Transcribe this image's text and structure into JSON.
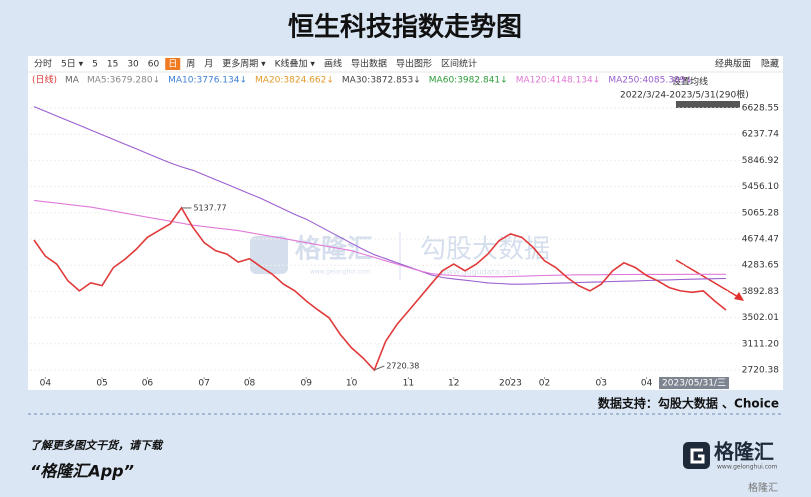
{
  "page": {
    "title": "恒生科技指数走势图",
    "toolbar": [
      "分时",
      "5日 ▾",
      "5",
      "15",
      "30",
      "60",
      "日",
      "周",
      "月",
      "更多周期 ▾",
      "K线叠加 ▾",
      "画线",
      "导出数据",
      "导出图形",
      "区间统计"
    ],
    "toolbar_selected": "日",
    "toolbar_right": [
      "经典版面",
      "隐藏"
    ],
    "ma_legend": [
      {
        "text": "MA",
        "color": "#666666"
      },
      {
        "text": "MA5:3679.280↓",
        "color": "#888888"
      },
      {
        "text": "MA10:3776.134↓",
        "color": "#3f7fd6"
      },
      {
        "text": "MA20:3824.662↓",
        "color": "#e39a2c"
      },
      {
        "text": "MA30:3872.853↓",
        "color": "#444444"
      },
      {
        "text": "MA60:3982.841↓",
        "color": "#2e9d3a"
      }
    ],
    "ma_setting": "设置均线",
    "range": "2022/3/24-2023/5/31(290根)",
    "date_box": "2023/05/31/三",
    "watermark": "格隆汇",
    "watermark_url": "www.gelonghui.com",
    "watermark2": "勾股大数据",
    "watermark2_url": "www.gugudata.com",
    "source": "数据支持：勾股大数据 、Choice",
    "footer_note": "了解更多图文干货，请下载",
    "footer_app": "“格隆汇App”",
    "logo": "格隆汇",
    "logo_url": "www.gelonghui.com",
    "corner_mark": "格隆汇"
  },
  "chart_data": {
    "type": "line",
    "categories": [
      null,
      "04",
      null,
      null,
      null,
      null,
      "05",
      null,
      null,
      null,
      "06",
      null,
      null,
      null,
      null,
      "07",
      null,
      null,
      null,
      "08",
      null,
      null,
      null,
      null,
      "09",
      null,
      null,
      null,
      "10",
      null,
      null,
      null,
      null,
      "11",
      null,
      null,
      null,
      "12",
      null,
      null,
      null,
      null,
      "2023",
      null,
      null,
      "02",
      null,
      null,
      null,
      null,
      "03",
      null,
      null,
      null,
      "04",
      null,
      null,
      null,
      null,
      null,
      null,
      null
    ],
    "series": [
      {
        "name": "(日线)",
        "color": "#e03a3a",
        "values": [
          4660,
          4420,
          4300,
          4050,
          3900,
          4020,
          3980,
          4250,
          4370,
          4520,
          4700,
          4800,
          4900,
          5137.77,
          4850,
          4620,
          4500,
          4450,
          4330,
          4380,
          4260,
          4150,
          4000,
          3900,
          3750,
          3620,
          3500,
          3250,
          3050,
          2900,
          2720.38,
          3150,
          3400,
          3600,
          3800,
          4000,
          4200,
          4300,
          4200,
          4300,
          4450,
          4650,
          4750,
          4700,
          4550,
          4350,
          4250,
          4100,
          3980,
          3900,
          4000,
          4200,
          4320,
          4250,
          4130,
          4050,
          3950,
          3900,
          3880,
          3900,
          3750,
          3615
        ],
        "value_labels": [
          null,
          null,
          null,
          null,
          null,
          null,
          null,
          null,
          null,
          null,
          null,
          null,
          null,
          "5137.77",
          null,
          null,
          null,
          null,
          null,
          null,
          null,
          null,
          null,
          null,
          null,
          null,
          null,
          null,
          null,
          null,
          "2720.38",
          null,
          null,
          null,
          null,
          null,
          null,
          null,
          null,
          null,
          null,
          null,
          null,
          null,
          null,
          null,
          null,
          null,
          null,
          null,
          null,
          null,
          null,
          null,
          null,
          null,
          null,
          null,
          null,
          null,
          null,
          null
        ]
      },
      {
        "name": "MA120:4148.134↓",
        "color": "#e07ad8",
        "values": [
          5250,
          5230,
          5210,
          5190,
          5170,
          5150,
          5120,
          5090,
          5060,
          5030,
          5000,
          4970,
          4940,
          4910,
          4880,
          4860,
          4840,
          4820,
          4800,
          4770,
          4740,
          4710,
          4680,
          4650,
          4620,
          4590,
          4560,
          4530,
          4500,
          4450,
          4400,
          4350,
          4300,
          4250,
          4200,
          4160,
          4140,
          4130,
          4120,
          4115,
          4110,
          4110,
          4115,
          4120,
          4125,
          4130,
          4135,
          4138,
          4140,
          4140,
          4142,
          4144,
          4145,
          4146,
          4146,
          4147,
          4147,
          4148,
          4148,
          4148,
          4148,
          4148.134
        ]
      },
      {
        "name": "MA250:4085.389↓",
        "color": "#9b5fd0",
        "values": [
          6650,
          6580,
          6510,
          6440,
          6370,
          6300,
          6230,
          6160,
          6090,
          6020,
          5950,
          5880,
          5810,
          5750,
          5700,
          5630,
          5560,
          5490,
          5420,
          5350,
          5280,
          5200,
          5120,
          5040,
          4970,
          4880,
          4790,
          4700,
          4610,
          4520,
          4440,
          4380,
          4320,
          4260,
          4200,
          4140,
          4100,
          4080,
          4060,
          4040,
          4020,
          4010,
          4000,
          4000,
          4005,
          4010,
          4015,
          4020,
          4025,
          4030,
          4035,
          4040,
          4045,
          4050,
          4055,
          4060,
          4065,
          4070,
          4075,
          4080,
          4083,
          4085.389
        ]
      }
    ],
    "ylim": [
      2616,
      6748
    ],
    "yticks": [
      2720.38,
      {
        "value": 3111.2,
        "label": "3111.20"
      },
      3502.01,
      3892.83,
      4283.65,
      4674.47,
      5065.28,
      {
        "value": 5456.1,
        "label": "5456.10"
      },
      5846.92,
      6237.74,
      6628.55
    ],
    "grid": true
  }
}
